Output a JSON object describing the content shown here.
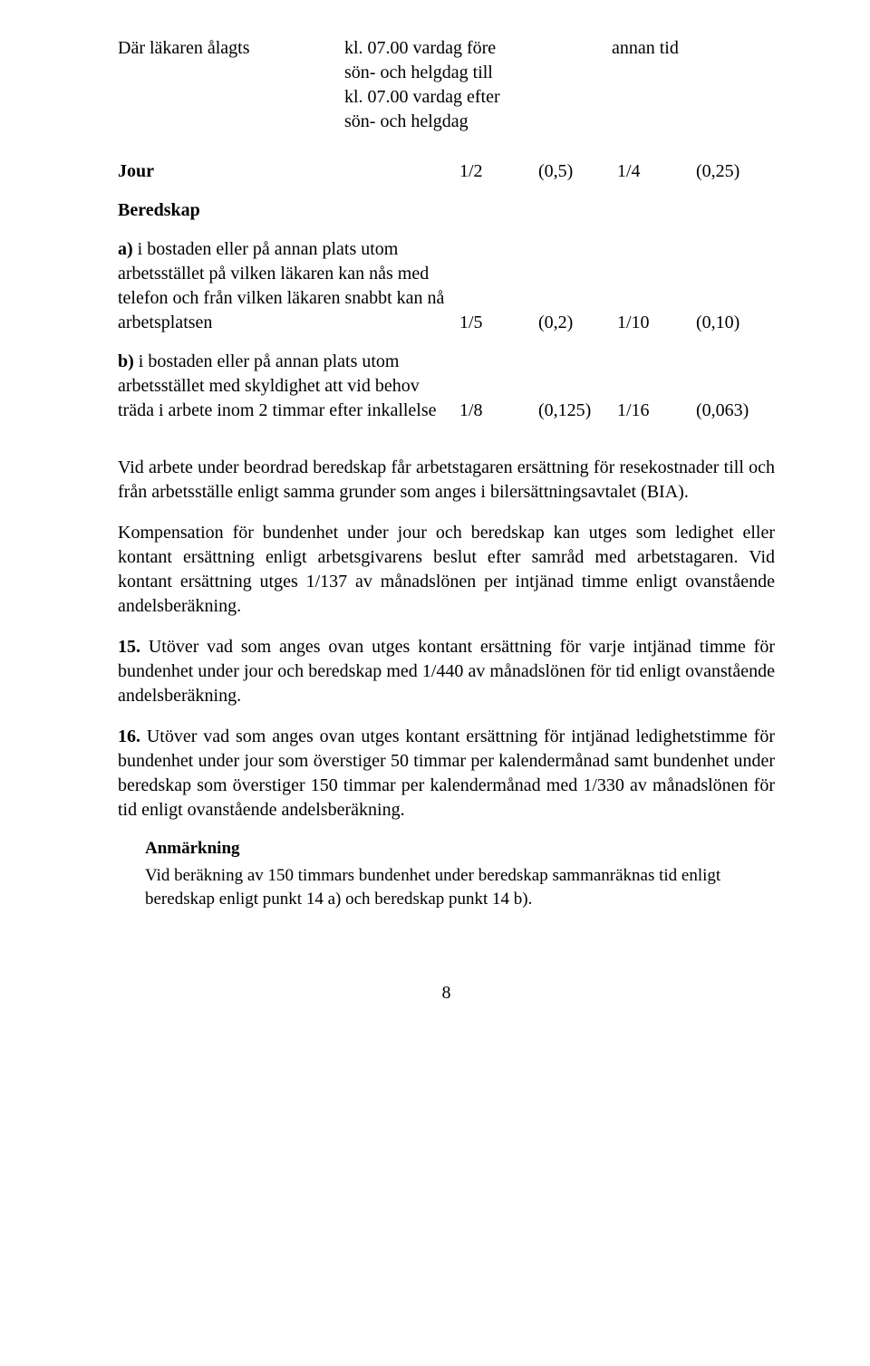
{
  "intro": {
    "left": "Där läkaren ålagts",
    "mid_l1": "kl. 07.00 vardag före",
    "mid_l2": "sön- och helgdag till",
    "mid_l3": "kl. 07.00 vardag efter",
    "mid_l4": "sön- och helgdag",
    "right": "annan tid"
  },
  "table": {
    "rows": [
      {
        "label_bold": "Jour",
        "label_rest": "",
        "c1": "1/2",
        "c2": "(0,5)",
        "c3": "1/4",
        "c4": "(0,25)"
      },
      {
        "label_bold": "Beredskap",
        "label_rest": "",
        "c1": "",
        "c2": "",
        "c3": "",
        "c4": ""
      },
      {
        "label_bold": "a)",
        "label_rest": " i bostaden eller på annan plats utom arbetsstället på vilken läkaren kan nås med telefon och från vilken läkaren snabbt kan nå arbetsplatsen",
        "c1": "1/5",
        "c2": "(0,2)",
        "c3": "1/10",
        "c4": "(0,10)"
      },
      {
        "label_bold": "b)",
        "label_rest": " i bostaden eller på annan plats utom arbetsstället med skyldighet att vid behov träda i arbete inom 2 timmar efter inkallelse",
        "c1": "1/8",
        "c2": "(0,125)",
        "c3": "1/16",
        "c4": "(0,063)"
      }
    ]
  },
  "paras": {
    "p1": "Vid arbete under beordrad beredskap får arbetstagaren ersättning för resekostnader till och från arbetsställe enligt samma grunder som anges i bilersättningsavtalet (BIA).",
    "p2": "Kompensation för bundenhet under jour och beredskap kan utges som ledighet eller kontant ersättning enligt arbetsgivarens beslut efter samråd med arbetstagaren. Vid kontant ersättning utges 1/137 av månadslönen per intjänad timme enligt ovanstående andelsberäkning.",
    "p3_num": "15.",
    "p3": " Utöver vad som anges ovan utges kontant ersättning för varje intjänad timme för bundenhet under jour och beredskap med 1/440 av månadslönen för tid enligt ovanstående andelsberäkning.",
    "p4_num": "16.",
    "p4": " Utöver vad som anges ovan utges kontant ersättning för intjänad ledighetstimme för bundenhet under jour som överstiger 50 timmar per kalendermånad samt bundenhet under beredskap som överstiger 150 timmar per kalendermånad med 1/330 av månadslönen för tid enligt ovanstående andelsberäkning."
  },
  "anm": {
    "heading": "Anmärkning",
    "body": "Vid beräkning av 150 timmars bundenhet under beredskap sammanräknas tid enligt beredskap enligt punkt 14 a) och beredskap punkt 14 b)."
  },
  "page_number": "8"
}
